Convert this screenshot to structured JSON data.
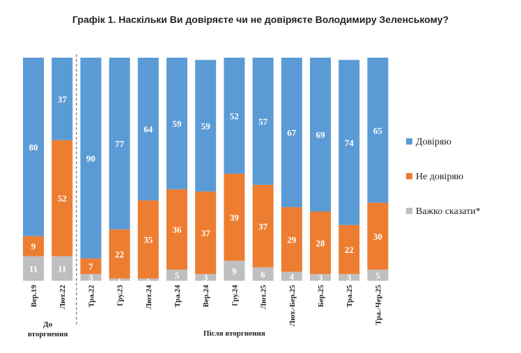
{
  "title": "Графік 1. Наскільки Ви довіряєте чи не довіряєте Володимиру Зеленському?",
  "chart_data": {
    "type": "bar",
    "stacked": true,
    "categories": [
      "Вер.19",
      "Лют.22",
      "Тра.22",
      "Гру.23",
      "Лют.24",
      "Тра.24",
      "Вер.24",
      "Гру.24",
      "Лют.25",
      "Лют.-Бер.25",
      "Бер.25",
      "Тра.25",
      "Тра.-Чер.25"
    ],
    "series": [
      {
        "name": "Важко сказати*",
        "color": "#bfbfbf",
        "values": [
          11,
          11,
          3,
          1,
          1,
          5,
          3,
          9,
          6,
          4,
          3,
          3,
          5
        ]
      },
      {
        "name": "Не довіряю",
        "color": "#ed7d31",
        "values": [
          9,
          52,
          7,
          22,
          35,
          36,
          37,
          39,
          37,
          29,
          28,
          22,
          30
        ]
      },
      {
        "name": "Довіряю",
        "color": "#5b9bd5",
        "values": [
          80,
          37,
          90,
          77,
          64,
          59,
          59,
          52,
          57,
          67,
          69,
          74,
          65
        ]
      }
    ],
    "ylim": [
      0,
      100
    ],
    "groups": [
      {
        "label_lines": [
          "До",
          "вторгнення"
        ],
        "from": 0,
        "to": 1
      },
      {
        "label_lines": [
          "Після вторгнення"
        ],
        "from": 2,
        "to": 12
      }
    ],
    "legend": {
      "position": "right",
      "order": [
        "Довіряю",
        "Не довіряю",
        "Важко сказати*"
      ]
    },
    "divider_after_index": 1,
    "grid": false
  }
}
